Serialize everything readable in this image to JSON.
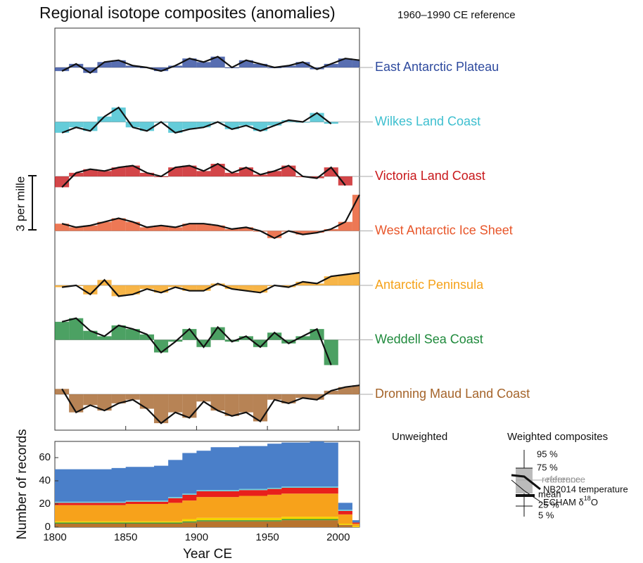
{
  "chart_data": [
    {
      "type": "line",
      "title": "Regional isotope composites (anomalies)",
      "subtitle": "1960–1990  CE reference",
      "scale_bar": {
        "value": 3,
        "label": "3 per mille"
      },
      "xlim": [
        1800,
        2015
      ],
      "x": [
        1800,
        1810,
        1820,
        1830,
        1840,
        1850,
        1860,
        1870,
        1880,
        1890,
        1900,
        1910,
        1920,
        1930,
        1940,
        1950,
        1960,
        1970,
        1980,
        1990,
        2000,
        2010
      ],
      "series": [
        {
          "name": "East Antarctic Plateau",
          "color": "#2e4a9e",
          "values": [
            -0.2,
            0.2,
            -0.3,
            0.3,
            0.4,
            0.1,
            0.0,
            -0.2,
            0.1,
            0.5,
            0.3,
            0.6,
            0.0,
            0.4,
            0.2,
            0.0,
            0.1,
            0.3,
            -0.1,
            0.2,
            0.5,
            0.4
          ]
        },
        {
          "name": "Wilkes Land Coast",
          "color": "#3dbfcf",
          "values": [
            -0.6,
            -0.3,
            -0.5,
            0.3,
            0.8,
            -0.3,
            -0.5,
            0.0,
            -0.6,
            -0.4,
            -0.3,
            0.0,
            -0.4,
            -0.2,
            -0.5,
            -0.2,
            0.1,
            0.0,
            0.5,
            -0.1,
            null,
            null
          ]
        },
        {
          "name": "Victoria Land Coast",
          "color": "#c8181b",
          "values": [
            -0.6,
            0.2,
            0.4,
            0.3,
            0.5,
            0.6,
            0.2,
            0.0,
            0.5,
            0.6,
            0.3,
            0.7,
            0.2,
            0.5,
            0.1,
            0.3,
            0.6,
            0.0,
            -0.1,
            0.5,
            -0.5,
            null
          ]
        },
        {
          "name": "West Antarctic Ice Sheet",
          "color": "#e8562a",
          "values": [
            0.4,
            0.2,
            0.3,
            0.5,
            0.7,
            0.5,
            0.2,
            0.3,
            0.2,
            0.4,
            0.4,
            0.3,
            0.1,
            0.2,
            0.0,
            -0.4,
            0.0,
            -0.2,
            -0.1,
            0.1,
            0.5,
            2.0
          ]
        },
        {
          "name": "Antarctic Peninsula",
          "color": "#f5a21a",
          "values": [
            -0.1,
            0.0,
            -0.5,
            0.3,
            -0.6,
            -0.5,
            -0.2,
            -0.4,
            -0.1,
            -0.3,
            -0.3,
            0.1,
            -0.2,
            -0.3,
            -0.4,
            0.0,
            -0.1,
            0.2,
            0.1,
            0.5,
            0.6,
            0.7
          ]
        },
        {
          "name": "Weddell Sea Coast",
          "color": "#1f8a3c",
          "values": [
            1.0,
            1.2,
            0.5,
            0.2,
            0.8,
            0.6,
            0.3,
            -0.7,
            -0.1,
            0.6,
            -0.4,
            0.7,
            -0.1,
            0.2,
            -0.4,
            0.4,
            -0.2,
            0.2,
            0.6,
            -1.4,
            null,
            null
          ]
        },
        {
          "name": "Dronning Maud Land Coast",
          "color": "#a5642a",
          "values": [
            0.3,
            -1.0,
            -0.6,
            -0.9,
            -0.5,
            -0.3,
            -0.8,
            -1.6,
            -1.0,
            -1.3,
            -0.4,
            -0.9,
            -1.2,
            -1.0,
            -1.5,
            -0.3,
            -0.5,
            -0.2,
            -0.3,
            0.2,
            0.4,
            0.5
          ]
        }
      ]
    },
    {
      "type": "stacked_area",
      "xlabel": "Year CE",
      "ylabel": "Number of records",
      "xlim": [
        1800,
        2015
      ],
      "ylim": [
        0,
        74
      ],
      "xticks": [
        1800,
        1850,
        1900,
        1950,
        2000
      ],
      "yticks": [
        0,
        20,
        40,
        60
      ],
      "x": [
        1800,
        1810,
        1820,
        1830,
        1840,
        1850,
        1860,
        1870,
        1880,
        1890,
        1900,
        1910,
        1920,
        1930,
        1940,
        1950,
        1960,
        1970,
        1980,
        1990,
        2000,
        2010
      ],
      "series": [
        {
          "name": "Dronning Maud Land Coast",
          "color": "#b8742e",
          "values": [
            3,
            3,
            3,
            3,
            3,
            3,
            3,
            3,
            3,
            4,
            5,
            5,
            5,
            5,
            5,
            5,
            6,
            6,
            6,
            6,
            2,
            0
          ]
        },
        {
          "name": "Weddell Sea Coast",
          "color": "#3a9a3a",
          "values": [
            1,
            1,
            1,
            1,
            1,
            1,
            1,
            1,
            1,
            1,
            1,
            1,
            1,
            1,
            1,
            1,
            1,
            1,
            1,
            1,
            0,
            0
          ]
        },
        {
          "name": "Antarctic Peninsula",
          "color": "#f4d400",
          "values": [
            1,
            1,
            1,
            1,
            1,
            1,
            1,
            1,
            1,
            2,
            2,
            2,
            2,
            2,
            2,
            2,
            2,
            2,
            2,
            2,
            1,
            1
          ]
        },
        {
          "name": "West Antarctic Ice Sheet",
          "color": "#f7a21b",
          "values": [
            14,
            14,
            14,
            14,
            14,
            15,
            15,
            15,
            16,
            16,
            18,
            18,
            18,
            19,
            19,
            20,
            20,
            20,
            20,
            20,
            8,
            2
          ]
        },
        {
          "name": "Victoria Land Coast",
          "color": "#e8201c",
          "values": [
            2,
            2,
            2,
            2,
            2,
            2,
            2,
            2,
            4,
            5,
            5,
            5,
            5,
            5,
            5,
            5,
            5,
            5,
            5,
            5,
            3,
            1
          ]
        },
        {
          "name": "Wilkes Land Coast",
          "color": "#6ad0dc",
          "values": [
            1,
            1,
            1,
            1,
            1,
            1,
            1,
            1,
            1,
            1,
            1,
            1,
            1,
            1,
            1,
            1,
            1,
            1,
            1,
            1,
            1,
            0
          ]
        },
        {
          "name": "East Antarctic Plateau",
          "color": "#4a7fc9",
          "values": [
            28,
            28,
            28,
            28,
            29,
            29,
            29,
            30,
            32,
            35,
            34,
            37,
            37,
            37,
            37,
            38,
            38,
            38,
            39,
            38,
            6,
            2
          ]
        }
      ]
    }
  ],
  "legend": {
    "unweighted": {
      "title": "Unweighted",
      "p95": "95 %",
      "p75": "75 %",
      "reference": "reference",
      "mean": "mean",
      "p25": "25 %",
      "p5": "5 %"
    },
    "weighted": {
      "title": "Weighted composites",
      "reference": "reference",
      "nb2014": "NB2014 temperature",
      "echam_prefix": "ECHAM δ",
      "echam_sup": "18",
      "echam_suffix": "O"
    }
  }
}
